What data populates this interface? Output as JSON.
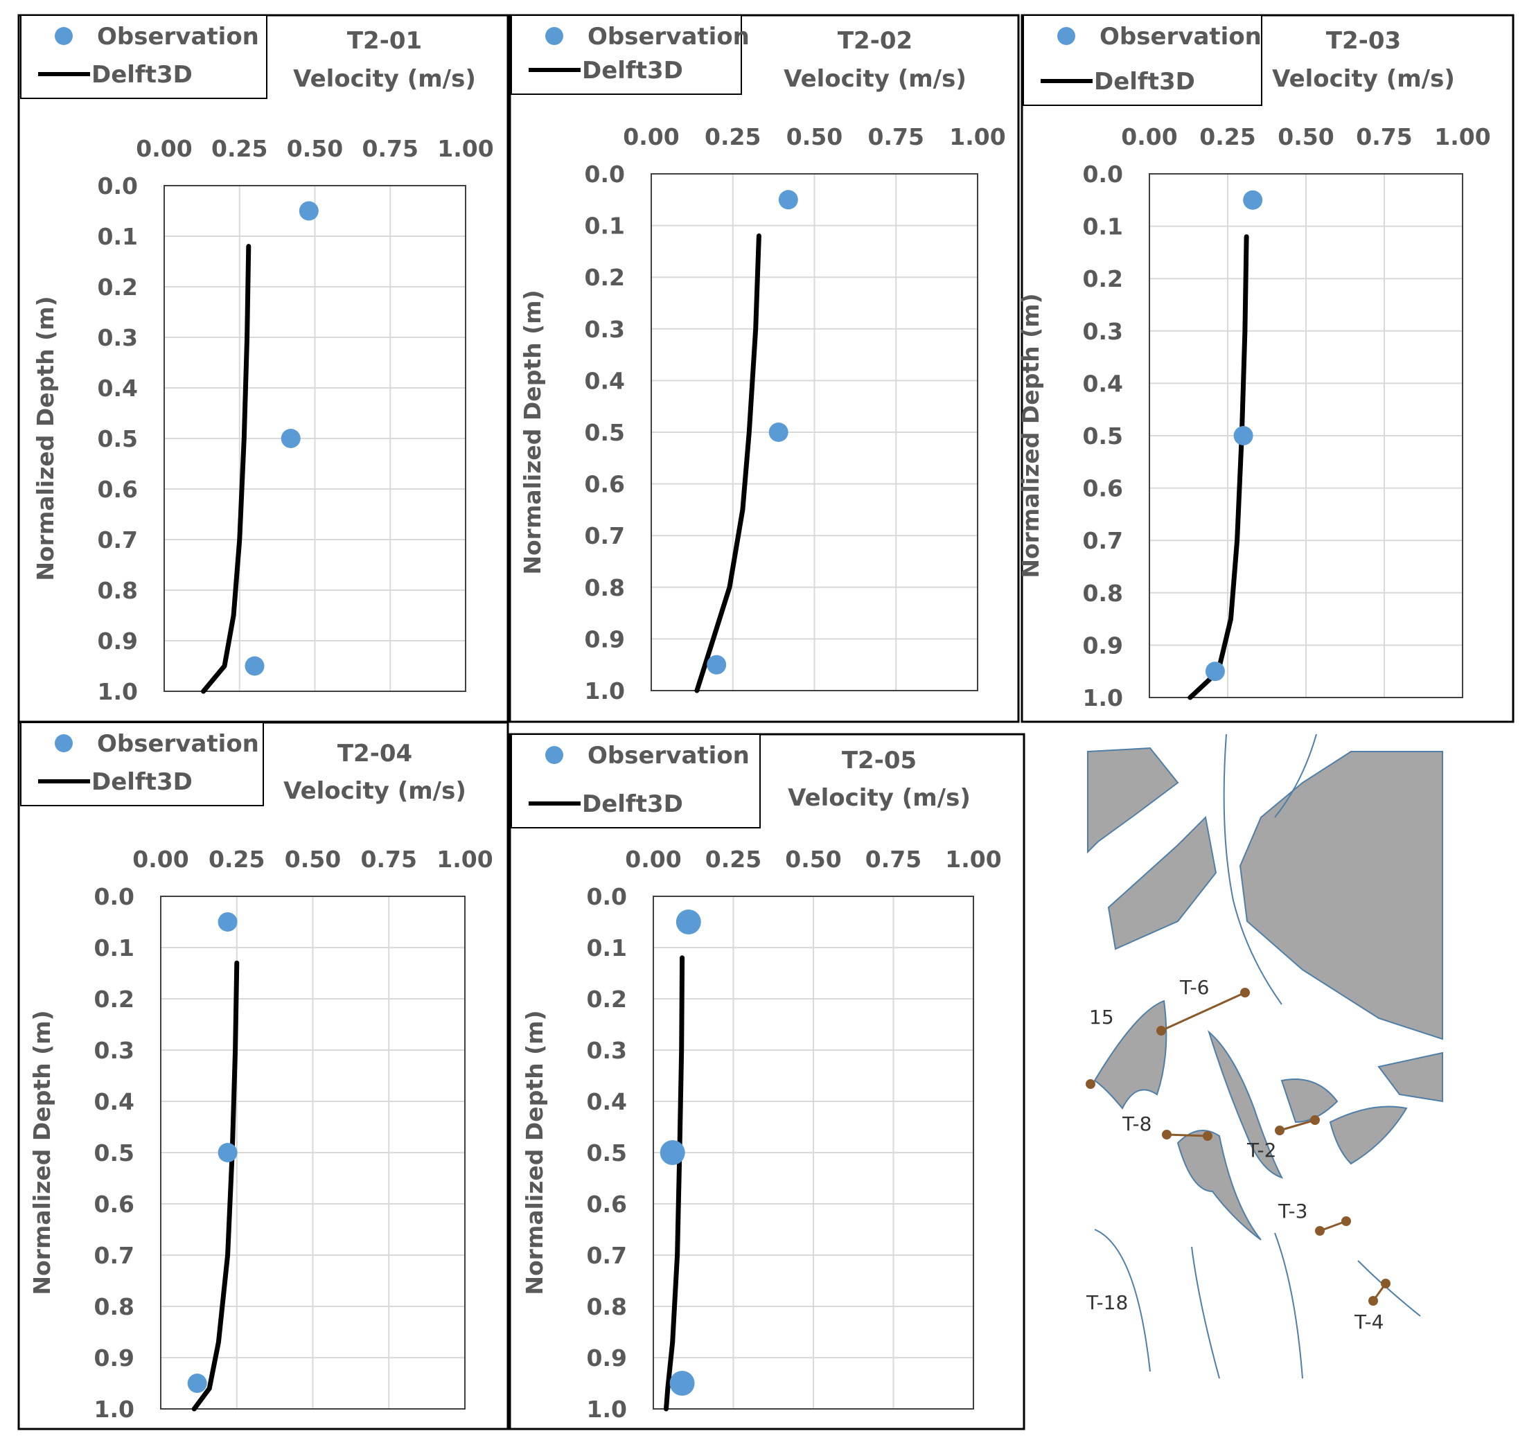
{
  "chart_data": [
    {
      "id": "T2-01",
      "type": "scatter+line",
      "title": "T2-01",
      "xlabel": "Velocity (m/s)",
      "ylabel": "Normalized Depth (m)",
      "xlim": [
        0,
        1
      ],
      "ylim": [
        0,
        1
      ],
      "y_inverted": true,
      "grid": true,
      "xticks": [
        "0.00",
        "0.25",
        "0.50",
        "0.75",
        "1.00"
      ],
      "yticks": [
        "0.0",
        "0.1",
        "0.2",
        "0.3",
        "0.4",
        "0.5",
        "0.6",
        "0.7",
        "0.8",
        "0.9",
        "1.0"
      ],
      "legend": [
        "Observation",
        "Delft3D"
      ],
      "observation": [
        {
          "x": 0.48,
          "y": 0.05
        },
        {
          "x": 0.42,
          "y": 0.5
        },
        {
          "x": 0.3,
          "y": 0.95
        }
      ],
      "delft3d": [
        {
          "x": 0.28,
          "y": 0.12
        },
        {
          "x": 0.275,
          "y": 0.3
        },
        {
          "x": 0.265,
          "y": 0.5
        },
        {
          "x": 0.25,
          "y": 0.7
        },
        {
          "x": 0.23,
          "y": 0.85
        },
        {
          "x": 0.2,
          "y": 0.95
        },
        {
          "x": 0.13,
          "y": 1.0
        }
      ]
    },
    {
      "id": "T2-02",
      "type": "scatter+line",
      "title": "T2-02",
      "xlabel": "Velocity (m/s)",
      "ylabel": "Normalized Depth (m)",
      "xlim": [
        0,
        1
      ],
      "ylim": [
        0,
        1
      ],
      "y_inverted": true,
      "grid": true,
      "xticks": [
        "0.00",
        "0.25",
        "0.50",
        "0.75",
        "1.00"
      ],
      "yticks": [
        "0.0",
        "0.1",
        "0.2",
        "0.3",
        "0.4",
        "0.5",
        "0.6",
        "0.7",
        "0.8",
        "0.9",
        "1.0"
      ],
      "legend": [
        "Observation",
        "Delft3D"
      ],
      "observation": [
        {
          "x": 0.42,
          "y": 0.05
        },
        {
          "x": 0.39,
          "y": 0.5
        },
        {
          "x": 0.2,
          "y": 0.95
        }
      ],
      "delft3d": [
        {
          "x": 0.33,
          "y": 0.12
        },
        {
          "x": 0.32,
          "y": 0.3
        },
        {
          "x": 0.3,
          "y": 0.5
        },
        {
          "x": 0.28,
          "y": 0.65
        },
        {
          "x": 0.24,
          "y": 0.8
        },
        {
          "x": 0.18,
          "y": 0.92
        },
        {
          "x": 0.14,
          "y": 1.0
        }
      ]
    },
    {
      "id": "T2-03",
      "type": "scatter+line",
      "title": "T2-03",
      "xlabel": "Velocity (m/s)",
      "ylabel": "Normalized Depth (m)",
      "xlim": [
        0,
        1
      ],
      "ylim": [
        0,
        1
      ],
      "y_inverted": true,
      "grid": true,
      "xticks": [
        "0.00",
        "0.25",
        "0.50",
        "0.75",
        "1.00"
      ],
      "yticks": [
        "0.0",
        "0.1",
        "0.2",
        "0.3",
        "0.4",
        "0.5",
        "0.6",
        "0.7",
        "0.8",
        "0.9",
        "1.0"
      ],
      "legend": [
        "Observation",
        "Delft3D"
      ],
      "observation": [
        {
          "x": 0.33,
          "y": 0.05
        },
        {
          "x": 0.3,
          "y": 0.5
        },
        {
          "x": 0.21,
          "y": 0.95
        }
      ],
      "delft3d": [
        {
          "x": 0.31,
          "y": 0.12
        },
        {
          "x": 0.305,
          "y": 0.3
        },
        {
          "x": 0.295,
          "y": 0.5
        },
        {
          "x": 0.28,
          "y": 0.7
        },
        {
          "x": 0.26,
          "y": 0.85
        },
        {
          "x": 0.22,
          "y": 0.95
        },
        {
          "x": 0.13,
          "y": 1.0
        }
      ]
    },
    {
      "id": "T2-04",
      "type": "scatter+line",
      "title": "T2-04",
      "xlabel": "Velocity (m/s)",
      "ylabel": "Normalized Depth (m)",
      "xlim": [
        0,
        1
      ],
      "ylim": [
        0,
        1
      ],
      "y_inverted": true,
      "grid": true,
      "xticks": [
        "0.00",
        "0.25",
        "0.50",
        "0.75",
        "1.00"
      ],
      "yticks": [
        "0.0",
        "0.1",
        "0.2",
        "0.3",
        "0.4",
        "0.5",
        "0.6",
        "0.7",
        "0.8",
        "0.9",
        "1.0"
      ],
      "legend": [
        "Observation",
        "Delft3D"
      ],
      "observation": [
        {
          "x": 0.22,
          "y": 0.05
        },
        {
          "x": 0.22,
          "y": 0.5
        },
        {
          "x": 0.12,
          "y": 0.95
        }
      ],
      "delft3d": [
        {
          "x": 0.25,
          "y": 0.13
        },
        {
          "x": 0.245,
          "y": 0.3
        },
        {
          "x": 0.235,
          "y": 0.5
        },
        {
          "x": 0.22,
          "y": 0.7
        },
        {
          "x": 0.19,
          "y": 0.87
        },
        {
          "x": 0.16,
          "y": 0.96
        },
        {
          "x": 0.11,
          "y": 1.0
        }
      ]
    },
    {
      "id": "T2-05",
      "type": "scatter+line",
      "title": "T2-05",
      "xlabel": "Velocity (m/s)",
      "ylabel": "Normalized Depth (m)",
      "xlim": [
        0,
        1
      ],
      "ylim": [
        0,
        1
      ],
      "y_inverted": true,
      "grid": true,
      "xticks": [
        "0.00",
        "0.25",
        "0.50",
        "0.75",
        "1.00"
      ],
      "yticks": [
        "0.0",
        "0.1",
        "0.2",
        "0.3",
        "0.4",
        "0.5",
        "0.6",
        "0.7",
        "0.8",
        "0.9",
        "1.0"
      ],
      "legend": [
        "Observation",
        "Delft3D"
      ],
      "observation": [
        {
          "x": 0.11,
          "y": 0.05
        },
        {
          "x": 0.06,
          "y": 0.5
        },
        {
          "x": 0.09,
          "y": 0.95
        }
      ],
      "delft3d": [
        {
          "x": 0.09,
          "y": 0.12
        },
        {
          "x": 0.088,
          "y": 0.3
        },
        {
          "x": 0.082,
          "y": 0.5
        },
        {
          "x": 0.075,
          "y": 0.7
        },
        {
          "x": 0.06,
          "y": 0.87
        },
        {
          "x": 0.045,
          "y": 0.96
        },
        {
          "x": 0.04,
          "y": 1.0
        }
      ]
    }
  ],
  "map": {
    "labels": [
      "T-6",
      "15",
      "T-8",
      "T-2",
      "T-3",
      "T-18",
      "T-4"
    ]
  },
  "colors": {
    "observation": "#5b9bd5",
    "model": "#000000",
    "grid": "#d9d9d9",
    "axis_text": "#595959",
    "land": "#a6a6a6",
    "channel": "#4f7fa8",
    "transect": "#8b5a2b"
  }
}
